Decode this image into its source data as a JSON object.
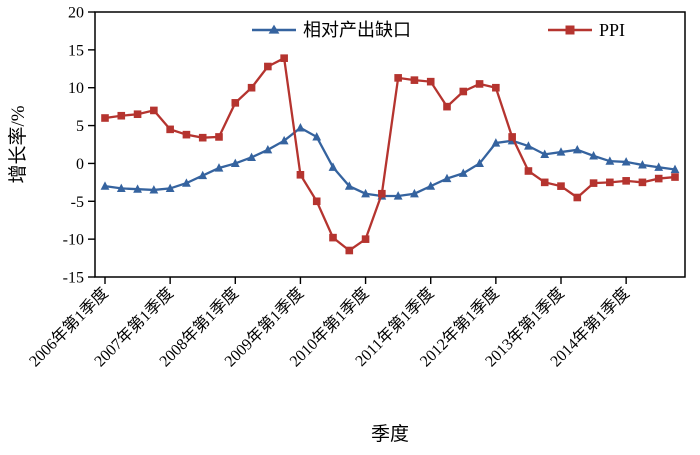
{
  "chart_data": {
    "type": "line",
    "title": "",
    "xlabel": "季度",
    "ylabel": "增长率/%",
    "ylim": [
      -15,
      20
    ],
    "ytick_step": 5,
    "ytick_labels": [
      "-15",
      "-10",
      "-5",
      "0",
      "5",
      "10",
      "15",
      "20"
    ],
    "grid": false,
    "legend_position": "top-inside",
    "categories": [
      "2006年第1季度",
      "2006年第2季度",
      "2006年第3季度",
      "2006年第4季度",
      "2007年第1季度",
      "2007年第2季度",
      "2007年第3季度",
      "2007年第4季度",
      "2008年第1季度",
      "2008年第2季度",
      "2008年第3季度",
      "2008年第4季度",
      "2009年第1季度",
      "2009年第2季度",
      "2009年第3季度",
      "2009年第4季度",
      "2010年第1季度",
      "2010年第2季度",
      "2010年第3季度",
      "2010年第4季度",
      "2011年第1季度",
      "2011年第2季度",
      "2011年第3季度",
      "2011年第4季度",
      "2012年第1季度",
      "2012年第2季度",
      "2012年第3季度",
      "2012年第4季度",
      "2013年第1季度",
      "2013年第2季度",
      "2013年第3季度",
      "2013年第4季度",
      "2014年第1季度",
      "2014年第2季度",
      "2014年第3季度",
      "2014年第4季度"
    ],
    "x_tick_labels": [
      "2006年第1季度",
      "2007年第1季度",
      "2008年第1季度",
      "2009年第1季度",
      "2010年第1季度",
      "2011年第1季度",
      "2012年第1季度",
      "2013年第1季度",
      "2014年第1季度"
    ],
    "x_tick_indices": [
      0,
      4,
      8,
      12,
      16,
      20,
      24,
      28,
      32
    ],
    "series": [
      {
        "name": "相对产出缺口",
        "color": "#35639f",
        "marker": "triangle",
        "values": [
          -3.0,
          -3.3,
          -3.4,
          -3.5,
          -3.3,
          -2.6,
          -1.6,
          -0.6,
          0.0,
          0.8,
          1.8,
          3.0,
          4.7,
          3.5,
          -0.5,
          -3.0,
          -4.0,
          -4.3,
          -4.3,
          -4.0,
          -3.0,
          -2.0,
          -1.3,
          0.0,
          2.7,
          3.0,
          2.3,
          1.2,
          1.5,
          1.8,
          1.0,
          0.3,
          0.2,
          -0.2,
          -0.5,
          -0.8
        ]
      },
      {
        "name": "PPI",
        "color": "#b5342f",
        "marker": "square",
        "values": [
          6.0,
          6.3,
          6.5,
          7.0,
          4.5,
          3.8,
          3.4,
          3.5,
          8.0,
          10.0,
          12.8,
          13.9,
          -1.5,
          -5.0,
          -9.8,
          -11.5,
          -10.0,
          -4.0,
          11.3,
          11.0,
          10.8,
          7.5,
          9.5,
          10.5,
          10.0,
          3.5,
          -1.0,
          -2.5,
          -3.0,
          -4.5,
          -2.6,
          -2.5,
          -2.3,
          -2.5,
          -2.0,
          -1.8
        ]
      }
    ]
  }
}
